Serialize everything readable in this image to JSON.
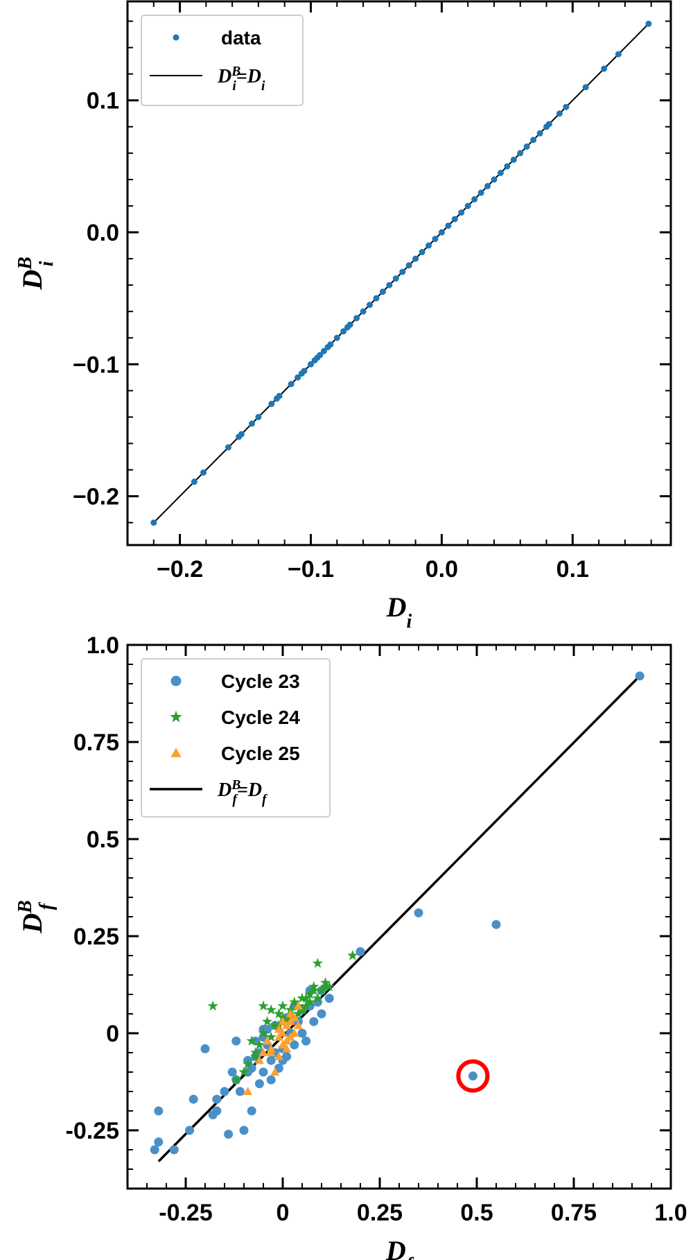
{
  "chart_data": [
    {
      "type": "scatter",
      "xlabel": "D",
      "xlabel_sub": "i",
      "ylabel": "D",
      "ylabel_sub": "i",
      "ylabel_sup": "B",
      "xlim": [
        -0.24,
        0.175
      ],
      "ylim": [
        -0.237,
        0.175
      ],
      "xticks": [
        -0.2,
        -0.1,
        0.0,
        0.1
      ],
      "xtick_labels": [
        "−0.2",
        "−0.1",
        "0.0",
        "0.1"
      ],
      "yticks": [
        -0.2,
        -0.1,
        0.0,
        0.1
      ],
      "ytick_labels": [
        "−0.2",
        "−0.1",
        "0.0",
        "0.1"
      ],
      "grid": false,
      "legend_position": "top-left",
      "legend": [
        {
          "marker": "dot",
          "label": "data"
        },
        {
          "marker": "line",
          "label_main": "D",
          "label_sup": "B",
          "label_sub": "i",
          "label_eq": "=D",
          "label_sub2": "i"
        }
      ],
      "series": [
        {
          "name": "data",
          "color": "#1f77b4",
          "x": [
            -0.22,
            -0.189,
            -0.182,
            -0.163,
            -0.155,
            -0.153,
            -0.145,
            -0.14,
            -0.13,
            -0.126,
            -0.124,
            -0.115,
            -0.11,
            -0.107,
            -0.105,
            -0.1,
            -0.097,
            -0.095,
            -0.093,
            -0.09,
            -0.087,
            -0.085,
            -0.08,
            -0.075,
            -0.072,
            -0.07,
            -0.065,
            -0.06,
            -0.055,
            -0.05,
            -0.045,
            -0.04,
            -0.035,
            -0.03,
            -0.025,
            -0.02,
            -0.015,
            -0.01,
            -0.005,
            0.0,
            0.005,
            0.01,
            0.015,
            0.02,
            0.025,
            0.03,
            0.035,
            0.04,
            0.045,
            0.05,
            0.055,
            0.06,
            0.065,
            0.07,
            0.075,
            0.08,
            0.082,
            0.09,
            0.095,
            0.11,
            0.124,
            0.135,
            0.158
          ],
          "y": [
            -0.22,
            -0.189,
            -0.182,
            -0.163,
            -0.155,
            -0.153,
            -0.145,
            -0.14,
            -0.13,
            -0.126,
            -0.124,
            -0.115,
            -0.11,
            -0.107,
            -0.105,
            -0.1,
            -0.097,
            -0.095,
            -0.093,
            -0.09,
            -0.087,
            -0.085,
            -0.08,
            -0.075,
            -0.072,
            -0.07,
            -0.065,
            -0.06,
            -0.055,
            -0.05,
            -0.045,
            -0.04,
            -0.035,
            -0.03,
            -0.025,
            -0.02,
            -0.015,
            -0.01,
            -0.005,
            0.0,
            0.005,
            0.01,
            0.015,
            0.02,
            0.025,
            0.03,
            0.035,
            0.04,
            0.045,
            0.05,
            0.055,
            0.06,
            0.065,
            0.07,
            0.075,
            0.08,
            0.082,
            0.09,
            0.095,
            0.11,
            0.124,
            0.135,
            0.158
          ]
        }
      ],
      "line": {
        "x": [
          -0.22,
          0.158
        ],
        "y": [
          -0.22,
          0.158
        ],
        "color": "#000000"
      }
    },
    {
      "type": "scatter",
      "xlabel": "D",
      "xlabel_sub": "f",
      "ylabel": "D",
      "ylabel_sub": "f",
      "ylabel_sup": "B",
      "xlim": [
        -0.4,
        1.0
      ],
      "ylim": [
        -0.4,
        1.0
      ],
      "xticks": [
        -0.25,
        0,
        0.25,
        0.5,
        0.75,
        1.0
      ],
      "xtick_labels": [
        "-0.25",
        "0",
        "0.25",
        "0.5",
        "0.75",
        "1.0"
      ],
      "yticks": [
        -0.25,
        0,
        0.25,
        0.5,
        0.75,
        1.0
      ],
      "ytick_labels": [
        "-0.25",
        "0",
        "0.25",
        "0.5",
        "0.75",
        "1.0"
      ],
      "grid": false,
      "legend_position": "top-left",
      "legend": [
        {
          "marker": "circle",
          "color": "#4a90c8",
          "label": "Cycle 23"
        },
        {
          "marker": "star",
          "color": "#2ca02c",
          "label": "Cycle 24"
        },
        {
          "marker": "triangle",
          "color": "#ffa030",
          "label": "Cycle 25"
        },
        {
          "marker": "line",
          "label_main": "D",
          "label_sup": "B",
          "label_sub": "f",
          "label_eq": "=D",
          "label_sub2": "f"
        }
      ],
      "series": [
        {
          "name": "Cycle 23",
          "marker": "circle",
          "color": "#4a90c8",
          "x": [
            -0.33,
            -0.32,
            -0.32,
            -0.28,
            -0.24,
            -0.23,
            -0.2,
            -0.18,
            -0.17,
            -0.17,
            -0.15,
            -0.14,
            -0.13,
            -0.12,
            -0.11,
            -0.1,
            -0.09,
            -0.09,
            -0.08,
            -0.07,
            -0.07,
            -0.06,
            -0.05,
            -0.05,
            -0.04,
            -0.03,
            -0.03,
            -0.02,
            -0.01,
            0.0,
            0.01,
            0.02,
            0.03,
            0.04,
            0.05,
            0.06,
            0.07,
            0.08,
            0.1,
            0.12,
            0.05,
            -0.04,
            -0.06,
            0.2,
            0.35,
            0.55,
            0.49,
            0.92,
            0.1,
            -0.12,
            -0.02,
            0.01,
            0.03,
            0.07,
            0.09,
            -0.08,
            0.0,
            -0.05
          ],
          "y": [
            -0.3,
            -0.2,
            -0.28,
            -0.3,
            -0.25,
            -0.17,
            -0.04,
            -0.21,
            -0.2,
            -0.17,
            -0.15,
            -0.26,
            -0.1,
            -0.12,
            -0.15,
            -0.25,
            -0.1,
            -0.07,
            -0.2,
            -0.06,
            -0.02,
            -0.05,
            -0.1,
            0.01,
            -0.03,
            -0.12,
            -0.07,
            -0.05,
            -0.09,
            -0.04,
            0.04,
            0.0,
            -0.03,
            0.03,
            0.0,
            -0.02,
            0.07,
            0.03,
            0.05,
            0.09,
            0.06,
            0.01,
            -0.13,
            0.21,
            0.31,
            0.28,
            -0.11,
            0.92,
            0.11,
            -0.02,
            0.02,
            -0.06,
            0.07,
            0.11,
            0.08,
            -0.09,
            -0.07,
            -0.01
          ]
        },
        {
          "name": "Cycle 24",
          "marker": "star",
          "color": "#2ca02c",
          "x": [
            -0.18,
            -0.05,
            -0.12,
            -0.1,
            -0.09,
            -0.08,
            -0.07,
            -0.06,
            -0.05,
            -0.04,
            -0.03,
            -0.02,
            -0.01,
            0.0,
            0.01,
            0.02,
            0.03,
            0.04,
            0.05,
            0.06,
            0.07,
            0.08,
            0.09,
            0.1,
            0.11,
            0.12,
            0.09,
            0.18,
            -0.03,
            0.0,
            0.02,
            -0.07,
            0.04,
            0.06,
            0.08,
            -0.01,
            0.05,
            0.07,
            0.11
          ],
          "y": [
            0.07,
            0.07,
            -0.12,
            -0.1,
            -0.08,
            -0.02,
            -0.05,
            -0.03,
            0.0,
            0.03,
            -0.01,
            0.02,
            0.05,
            0.04,
            0.03,
            0.06,
            0.08,
            0.05,
            0.09,
            0.07,
            0.1,
            0.12,
            0.18,
            0.11,
            0.13,
            0.12,
            0.09,
            0.2,
            0.06,
            0.07,
            0.04,
            -0.06,
            0.07,
            0.09,
            0.11,
            0.02,
            0.06,
            0.08,
            0.12
          ]
        },
        {
          "name": "Cycle 25",
          "marker": "triangle",
          "color": "#ffa030",
          "x": [
            -0.09,
            -0.06,
            -0.05,
            -0.04,
            -0.03,
            -0.02,
            -0.01,
            -0.01,
            0.0,
            0.0,
            0.01,
            0.01,
            0.02,
            0.02,
            0.03,
            0.04,
            0.04,
            -0.01,
            0.01,
            0.03,
            -0.03,
            0.0,
            0.02
          ],
          "y": [
            -0.15,
            -0.07,
            -0.05,
            -0.02,
            -0.04,
            -0.1,
            -0.01,
            -0.06,
            0.0,
            -0.03,
            0.02,
            -0.02,
            0.03,
            -0.01,
            0.04,
            0.02,
            0.07,
            0.01,
            -0.04,
            0.0,
            -0.05,
            0.03,
            0.05
          ]
        }
      ],
      "line": {
        "x": [
          -0.32,
          0.92
        ],
        "y": [
          -0.33,
          0.92
        ],
        "color": "#000000"
      },
      "annotations": [
        {
          "type": "circle",
          "color": "#ff0000",
          "x": 0.49,
          "y": -0.11
        }
      ]
    }
  ]
}
